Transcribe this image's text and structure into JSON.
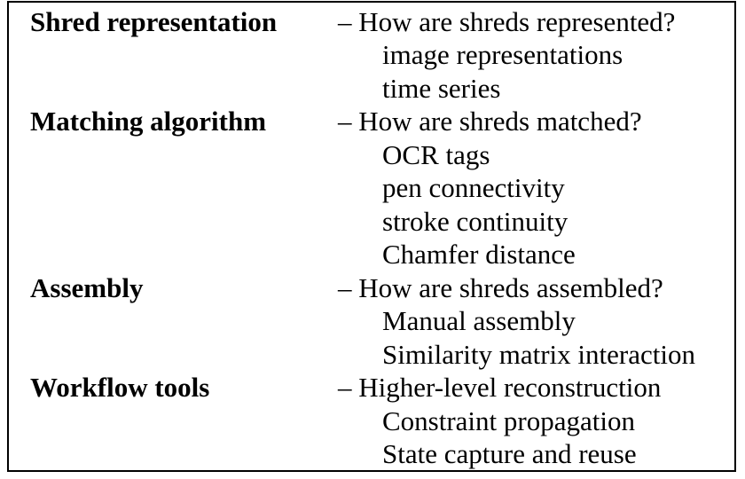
{
  "sections": [
    {
      "heading": "Shred representation",
      "question": "– How are shreds represented?",
      "items": [
        "image representations",
        "time series"
      ]
    },
    {
      "heading": "Matching algorithm",
      "question": "– How are shreds matched?",
      "items": [
        "OCR tags",
        "pen connectivity",
        "stroke continuity",
        "Chamfer distance"
      ]
    },
    {
      "heading": "Assembly",
      "question": "– How are shreds assembled?",
      "items": [
        "Manual assembly",
        "Similarity matrix interaction"
      ]
    },
    {
      "heading": "Workflow tools",
      "question": "– Higher-level reconstruction",
      "items": [
        "Constraint propagation",
        "State capture and reuse"
      ]
    }
  ]
}
